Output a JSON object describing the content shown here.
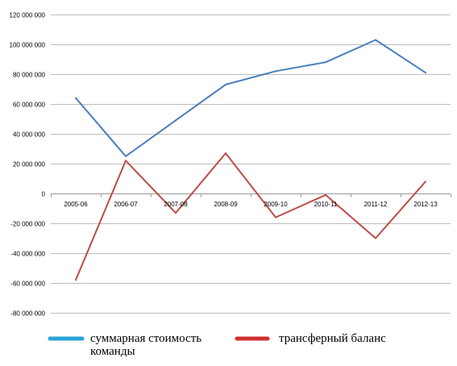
{
  "chart_data": {
    "type": "line",
    "title": "",
    "xlabel": "",
    "ylabel": "",
    "categories": [
      "2005-06",
      "2006-07",
      "2007-08",
      "2008-09",
      "2009-10",
      "2010-11",
      "2011-12",
      "2012-13"
    ],
    "ylim": [
      -80000000,
      120000000
    ],
    "yticks": [
      120000000,
      100000000,
      80000000,
      60000000,
      40000000,
      20000000,
      0,
      -20000000,
      -40000000,
      -60000000,
      -80000000
    ],
    "ytick_labels": [
      "120 000 000",
      "100 000 000",
      "80 000 000",
      "60 000 000",
      "40 000 000",
      "20 000 000",
      "0",
      "-20 000 000",
      "-40 000 000",
      "-60 000 000",
      "-80 000 000"
    ],
    "grid": true,
    "legend_position": "bottom",
    "series": [
      {
        "name": "суммарная стоимость команды",
        "legend_lines": [
          "суммарная стоимость",
          "команды"
        ],
        "color": "#4a7ebb",
        "legend_color": "#2aa5d6",
        "values": [
          64000000,
          25000000,
          49000000,
          73000000,
          82000000,
          88000000,
          103000000,
          81000000
        ]
      },
      {
        "name": "трансферный баланс",
        "legend_lines": [
          "трансферный баланс"
        ],
        "color": "#be4b48",
        "legend_color": "#d0302f",
        "values": [
          -58000000,
          22000000,
          -13000000,
          27000000,
          -16000000,
          -1000000,
          -30000000,
          8000000
        ]
      }
    ]
  }
}
